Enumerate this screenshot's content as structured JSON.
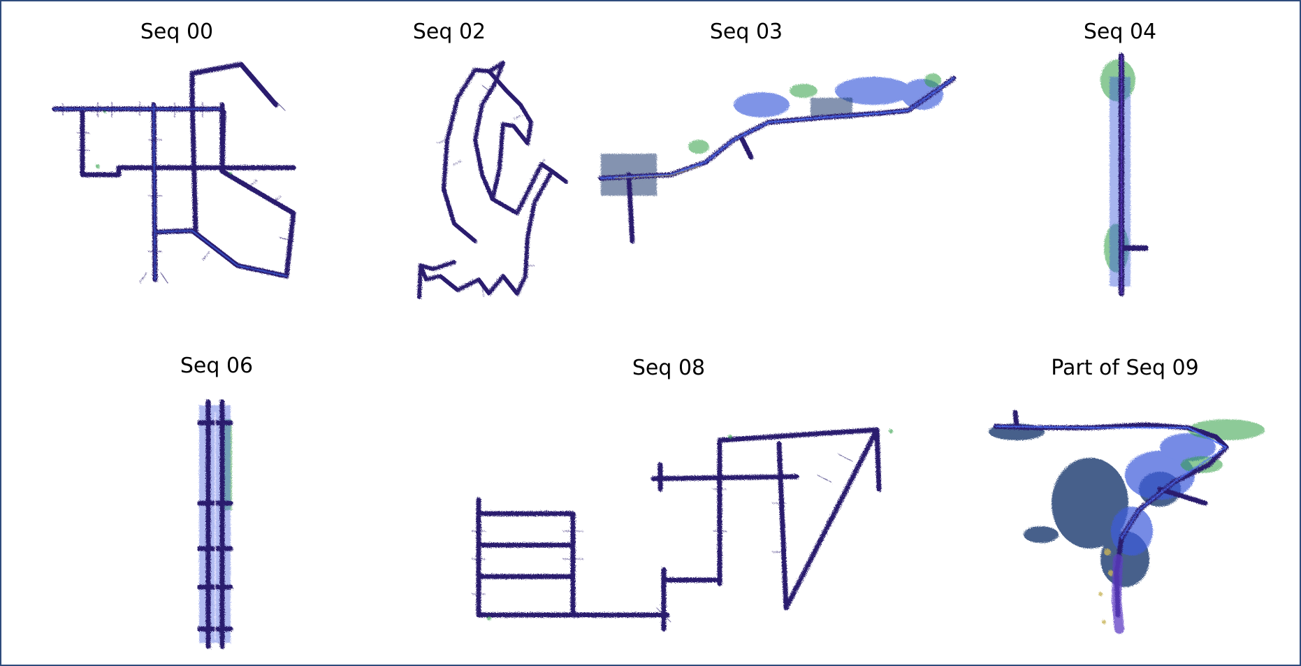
{
  "figure": {
    "panels": [
      {
        "id": "seq00",
        "title": "Seq 00"
      },
      {
        "id": "seq02",
        "title": "Seq 02"
      },
      {
        "id": "seq03",
        "title": "Seq 03"
      },
      {
        "id": "seq04",
        "title": "Seq 04"
      },
      {
        "id": "seq06",
        "title": "Seq 06"
      },
      {
        "id": "seq08",
        "title": "Seq 08"
      },
      {
        "id": "seq09",
        "title": "Part of Seq 09"
      }
    ],
    "colors": {
      "road": "#2a1f6e",
      "blue": "#3b5bdb",
      "green": "#2f9e44",
      "teal": "#1c7ed6",
      "yellow": "#c9b458",
      "purple": "#5f3dc4",
      "frame": "#2f4b7c"
    }
  }
}
